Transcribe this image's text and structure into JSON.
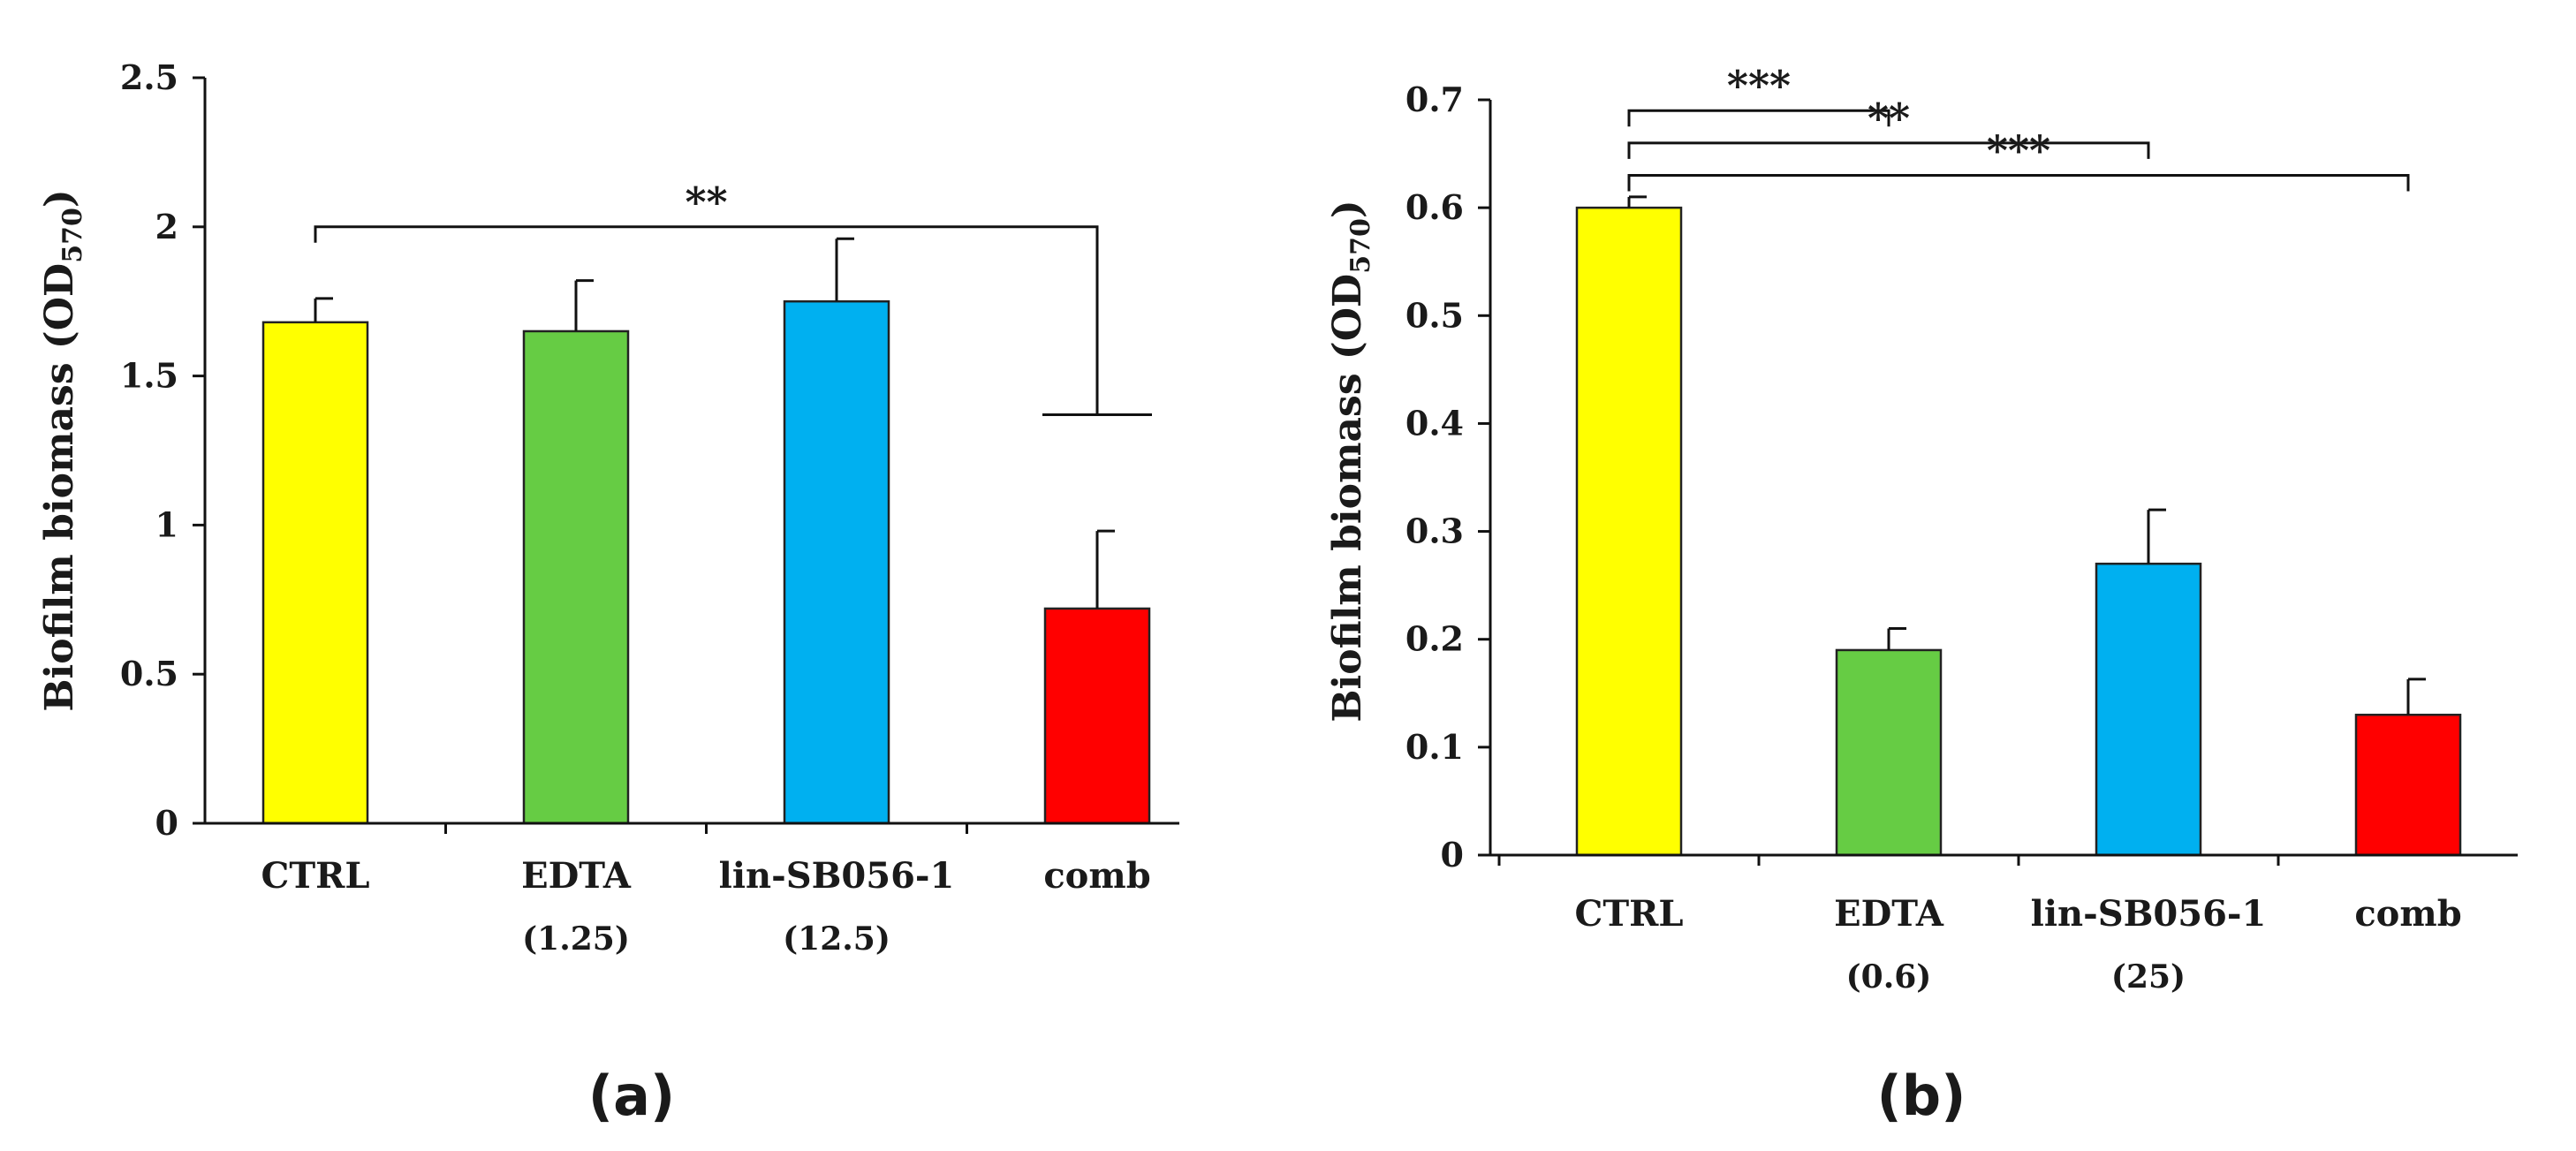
{
  "chart_data": [
    {
      "type": "bar",
      "panel_label": "(a)",
      "ylabel_main": "Biofilm biomass (OD",
      "ylabel_sub": "570",
      "ylabel_close": ")",
      "xlabel": "",
      "ylim": [
        0,
        2.5
      ],
      "yticks": [
        0,
        0.5,
        1,
        1.5,
        2,
        2.5
      ],
      "ytick_labels": [
        "0",
        "0.5",
        "1",
        "1.5",
        "2",
        "2.5"
      ],
      "categories": [
        "CTRL",
        "EDTA",
        "lin-SB056-1",
        "comb"
      ],
      "category_sublabels": [
        "",
        "(1.25)",
        "(12.5)",
        ""
      ],
      "values": [
        1.68,
        1.65,
        1.75,
        0.72
      ],
      "errors": [
        0.08,
        0.17,
        0.21,
        0.26
      ],
      "colors": [
        "#ffff00",
        "#66cc44",
        "#00b0f0",
        "#ff0000"
      ],
      "significance": [
        {
          "from": 0,
          "to": 3,
          "label": "**",
          "y": 2.0,
          "drop_to": 1.37
        }
      ]
    },
    {
      "type": "bar",
      "panel_label": "(b)",
      "ylabel_main": "Biofilm biomass (OD",
      "ylabel_sub": "570",
      "ylabel_close": ")",
      "xlabel": "",
      "ylim": [
        0,
        0.7
      ],
      "yticks": [
        0,
        0.1,
        0.2,
        0.3,
        0.4,
        0.5,
        0.6,
        0.7
      ],
      "ytick_labels": [
        "0",
        "0.1",
        "0.2",
        "0.3",
        "0.4",
        "0.5",
        "0.6",
        "0.7"
      ],
      "categories": [
        "CTRL",
        "EDTA",
        "lin-SB056-1",
        "comb"
      ],
      "category_sublabels": [
        "",
        "(0.6)",
        "(25)",
        ""
      ],
      "values": [
        0.6,
        0.19,
        0.27,
        0.13
      ],
      "errors": [
        0.01,
        0.02,
        0.05,
        0.033
      ],
      "colors": [
        "#ffff00",
        "#66cc44",
        "#00b0f0",
        "#ff0000"
      ],
      "significance": [
        {
          "from": 0,
          "to": 1,
          "label": "***",
          "y": 0.69
        },
        {
          "from": 0,
          "to": 2,
          "label": "**",
          "y": 0.66
        },
        {
          "from": 0,
          "to": 3,
          "label": "***",
          "y": 0.63
        }
      ]
    }
  ]
}
